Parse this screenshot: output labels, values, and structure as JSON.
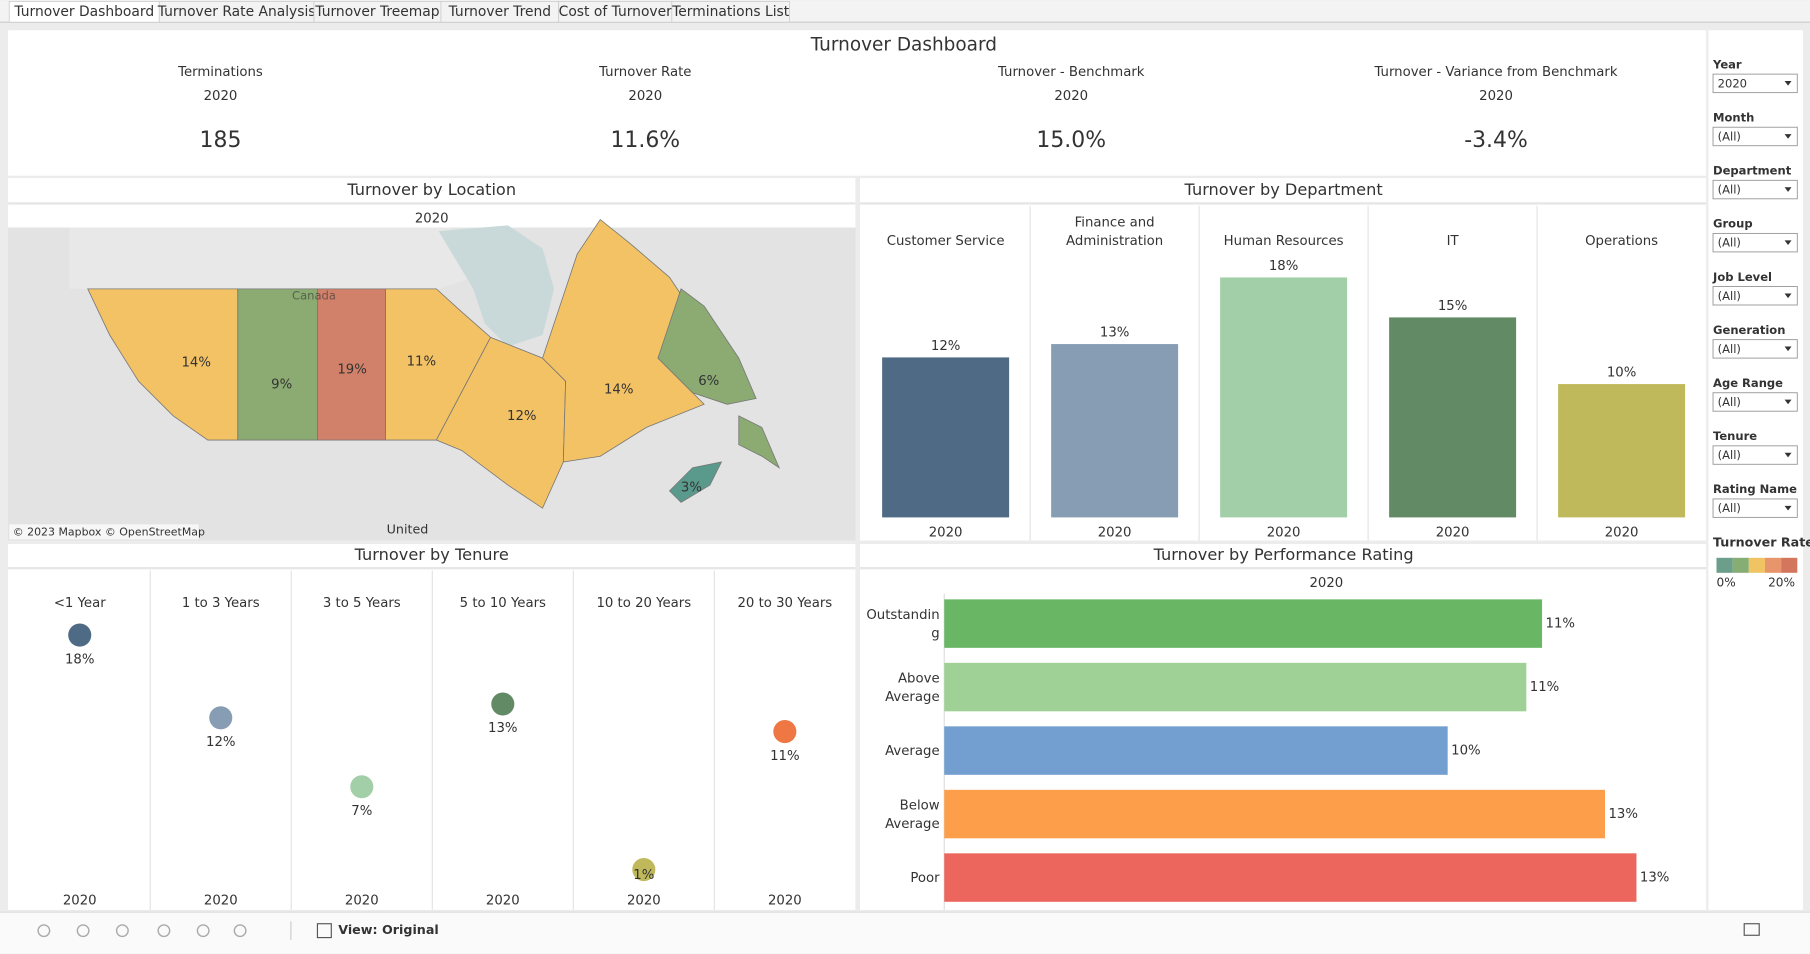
{
  "tabs": [
    "Turnover Dashboard",
    "Turnover Rate Analysis",
    "Turnover Treemap",
    "Turnover Trend",
    "Cost of Turnover",
    "Terminations List"
  ],
  "title": "Turnover Dashboard",
  "kpis": [
    {
      "label": "Terminations",
      "year": "2020",
      "value": "185"
    },
    {
      "label": "Turnover Rate",
      "year": "2020",
      "value": "11.6%"
    },
    {
      "label": "Turnover - Benchmark",
      "year": "2020",
      "value": "15.0%"
    },
    {
      "label": "Turnover - Variance from Benchmark",
      "year": "2020",
      "value": "-3.4%"
    }
  ],
  "location": {
    "title": "Turnover by Location",
    "subtitle": "2020",
    "region_labels": [
      "14%",
      "9%",
      "19%",
      "11%",
      "12%",
      "14%",
      "6%",
      "3%"
    ],
    "map_labels": [
      "Canada",
      "United"
    ],
    "credit": "© 2023 Mapbox © OpenStreetMap"
  },
  "department": {
    "type": "bar",
    "title": "Turnover by Department",
    "categories": [
      "Customer Service",
      "Finance and Administration",
      "Human Resources",
      "IT",
      "Operations"
    ],
    "x_label": "2020",
    "values": [
      12,
      13,
      18,
      15,
      10
    ],
    "value_labels": [
      "12%",
      "13%",
      "18%",
      "15%",
      "10%"
    ],
    "colors": [
      "#4e6a85",
      "#879db3",
      "#a3cfa8",
      "#628a65",
      "#bfb95b"
    ],
    "ylim": [
      0,
      20
    ]
  },
  "tenure": {
    "type": "dot",
    "title": "Turnover by Tenure",
    "categories": [
      "<1 Year",
      "1 to 3 Years",
      "3 to 5 Years",
      "5 to 10 Years",
      "10 to 20 Years",
      "20 to 30 Years"
    ],
    "x_label": "2020",
    "values": [
      18,
      12,
      7,
      13,
      1,
      11
    ],
    "value_labels": [
      "18%",
      "12%",
      "7%",
      "13%",
      "1%",
      "11%"
    ],
    "colors": [
      "#4e6a85",
      "#879db3",
      "#a3cfa8",
      "#628a65",
      "#bfb95b",
      "#ee7744"
    ],
    "ylim": [
      0,
      20
    ]
  },
  "performance": {
    "type": "hbar",
    "title": "Turnover by Performance Rating",
    "subtitle": "2020",
    "categories": [
      "Outstanding",
      "Above Average",
      "Average",
      "Below Average",
      "Poor"
    ],
    "values": [
      11.4,
      11.1,
      9.6,
      12.6,
      13.2
    ],
    "value_labels": [
      "11%",
      "11%",
      "10%",
      "13%",
      "13%"
    ],
    "colors": [
      "#69b764",
      "#9fd196",
      "#729fcf",
      "#fc9e4a",
      "#ec665e"
    ],
    "xlim": [
      0,
      14
    ]
  },
  "filters": [
    {
      "label": "Year",
      "value": "2020"
    },
    {
      "label": "Month",
      "value": "(All)"
    },
    {
      "label": "Department",
      "value": "(All)"
    },
    {
      "label": "Group",
      "value": "(All)"
    },
    {
      "label": "Job Level",
      "value": "(All)"
    },
    {
      "label": "Generation",
      "value": "(All)"
    },
    {
      "label": "Age Range",
      "value": "(All)"
    },
    {
      "label": "Tenure",
      "value": "(All)"
    },
    {
      "label": "Rating Name",
      "value": "(All)"
    }
  ],
  "legend": {
    "title": "Turnover Rate",
    "min_label": "0%",
    "max_label": "20%",
    "colors": [
      "#6b9e8b",
      "#86ad74",
      "#f1c463",
      "#e8956b",
      "#d4755d"
    ]
  },
  "toolbar": {
    "view": "View: Original"
  }
}
